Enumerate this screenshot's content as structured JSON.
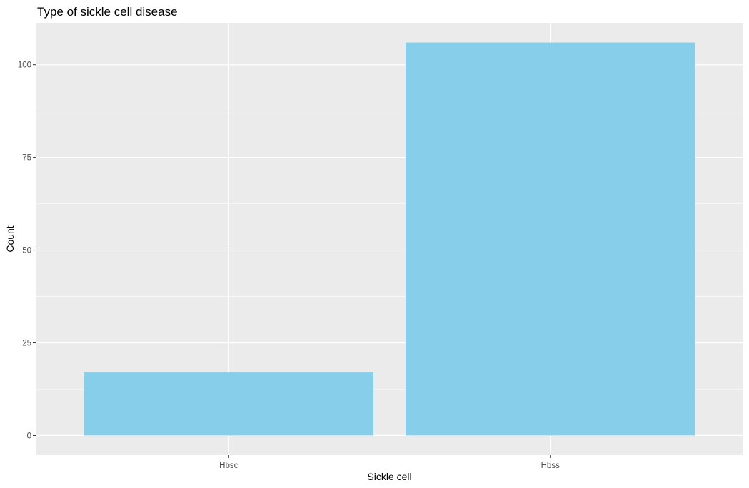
{
  "chart_data": {
    "type": "bar",
    "title": "Type of sickle cell disease",
    "xlabel": "Sickle cell",
    "ylabel": "Count",
    "categories": [
      "Hbsc",
      "Hbss"
    ],
    "values": [
      17,
      106
    ],
    "ylim": [
      -5.3,
      111.3
    ],
    "yticks": [
      0,
      25,
      50,
      75,
      100
    ],
    "grid": true,
    "legend": "none",
    "colors": {
      "bar": "#87CEEB",
      "panel_background": "#EBEBEB",
      "grid": "#FFFFFF",
      "tick_text": "#4D4D4D",
      "tick_mark": "#333333"
    }
  }
}
